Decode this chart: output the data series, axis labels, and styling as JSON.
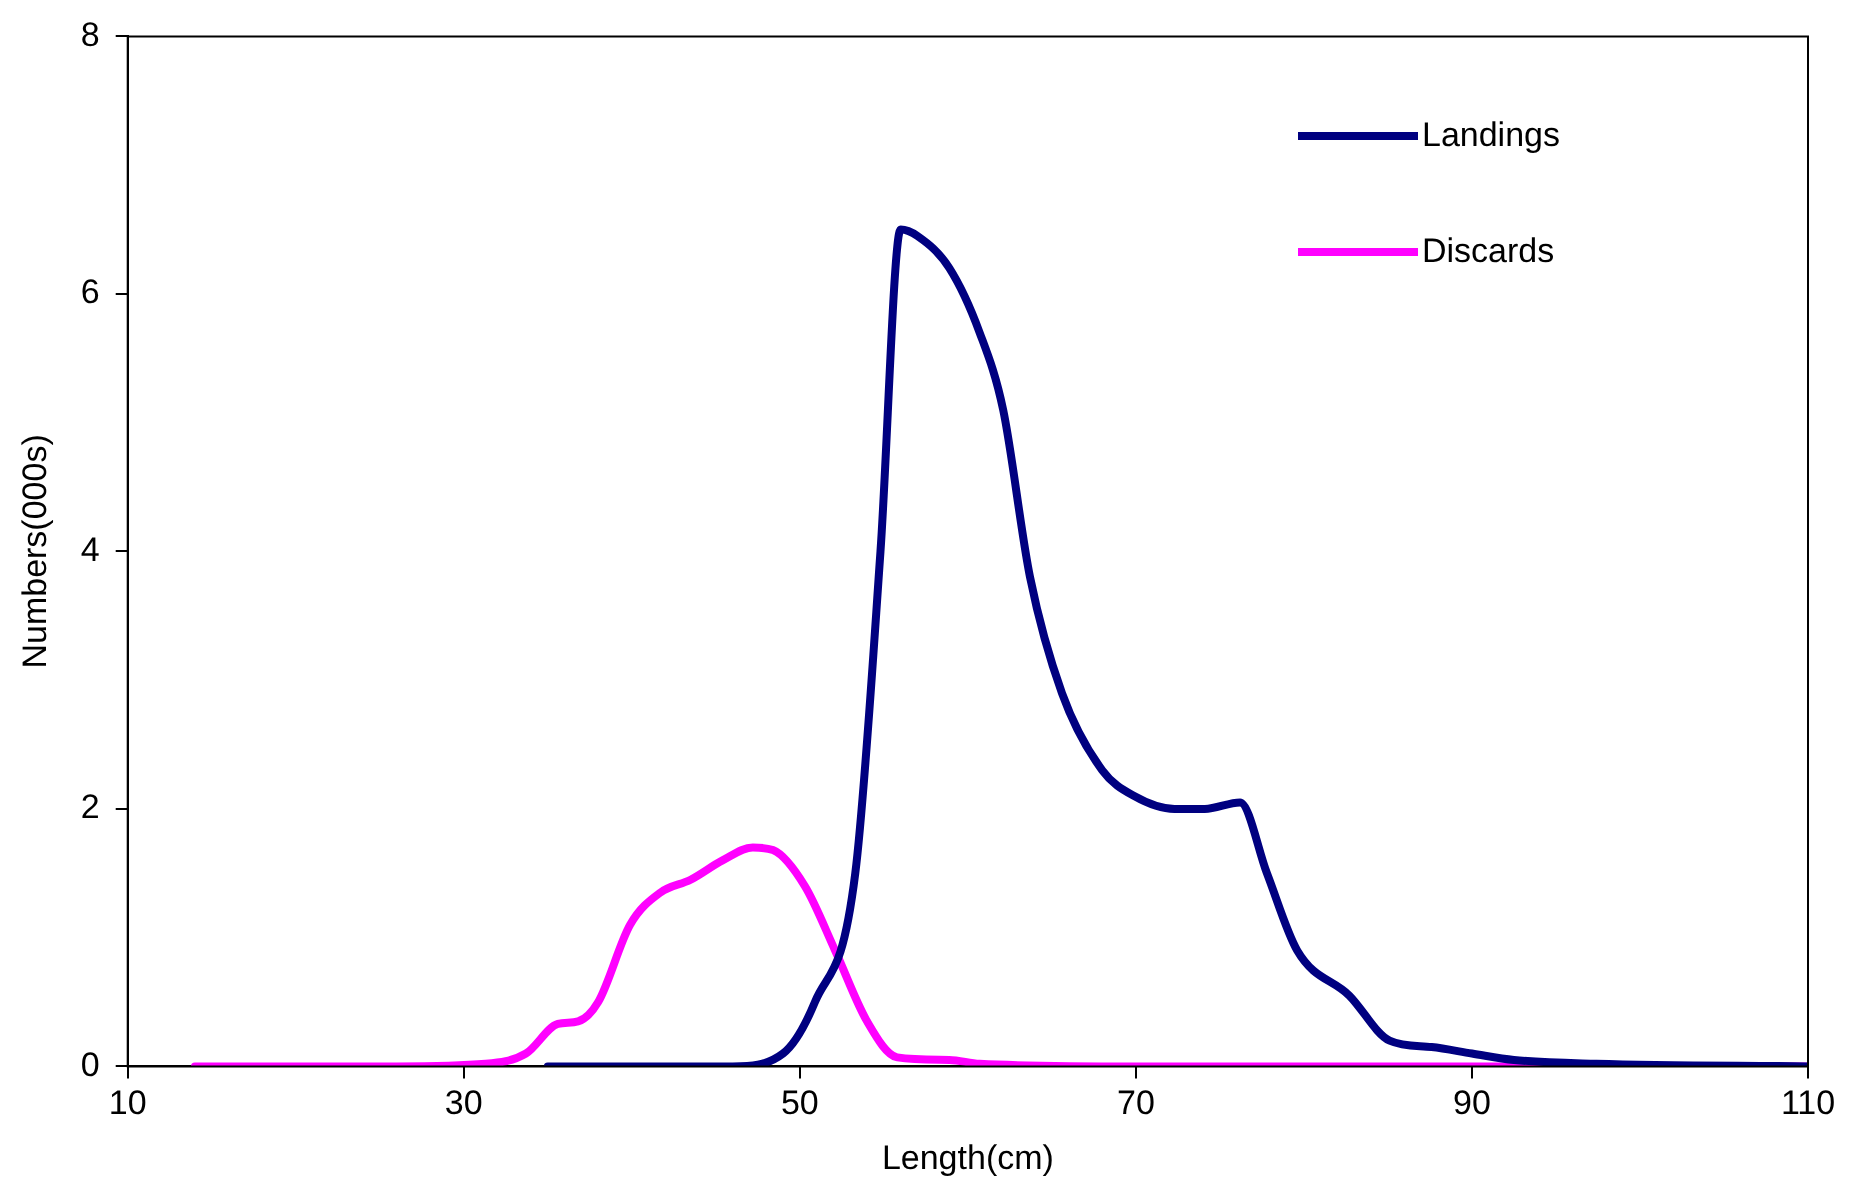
{
  "chart_data": {
    "type": "line",
    "xlabel": "Length(cm)",
    "ylabel": "Numbers(000s)",
    "xlim": [
      10,
      110
    ],
    "xticks": [
      10,
      30,
      50,
      70,
      90,
      110
    ],
    "ylim": [
      0,
      8
    ],
    "yticks": [
      0,
      2,
      4,
      6,
      8
    ],
    "grid": false,
    "legend": "top right",
    "marker": "none",
    "line_style": "solid",
    "series": [
      {
        "name": "Landings",
        "color": "#000080",
        "x": [
          35,
          40,
          46,
          49,
          50.9,
          53.3,
          54.8,
          56,
          57,
          58.9,
          60.7,
          62.1,
          63.7,
          65.6,
          68,
          69.9,
          72.3,
          74.1,
          76.2,
          77.8,
          79.6,
          82.7,
          85.1,
          87.6,
          90,
          92.5,
          97.4,
          110
        ],
        "values": [
          0,
          0,
          0,
          0.1,
          0.5,
          1.5,
          4,
          6.5,
          6.45,
          6.2,
          5.7,
          5.1,
          3.8,
          2.9,
          2.3,
          2.1,
          2,
          2,
          2.05,
          1.5,
          0.9,
          0.55,
          0.2,
          0.15,
          0.1,
          0.05,
          0.02,
          0
        ]
      },
      {
        "name": "Discards",
        "color": "#ff00ff",
        "x": [
          14,
          20,
          26,
          31.3,
          33.7,
          35.6,
          36.8,
          38,
          39.9,
          41.7,
          43.5,
          45.4,
          47.2,
          48.4,
          50.3,
          52.1,
          54,
          55.8,
          58.9,
          60.7,
          70,
          90,
          110
        ],
        "values": [
          0,
          0,
          0,
          0.02,
          0.1,
          0.33,
          0.35,
          0.5,
          1.1,
          1.35,
          1.45,
          1.6,
          1.7,
          1.68,
          1.4,
          0.9,
          0.35,
          0.07,
          0.05,
          0.02,
          0,
          0,
          0
        ]
      }
    ]
  }
}
